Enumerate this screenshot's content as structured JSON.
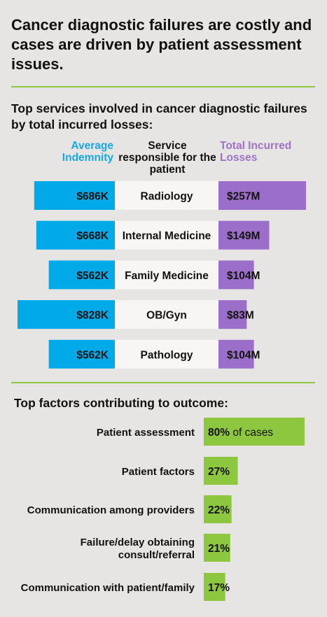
{
  "title": "Cancer diagnostic failures are costly and cases are driven by patient assessment issues.",
  "section1": {
    "title": "Top services involved in cancer diagnostic failures by total incurred losses:",
    "col_left": "Average Indemnity",
    "col_mid": "Service responsible for the patient",
    "col_right": "Total Incurred Losses"
  },
  "section2": {
    "title": "Top factors contributing to outcome:",
    "of_cases": "of cases"
  },
  "colors": {
    "indemnity": "#00a9e8",
    "losses": "#9b6fc9",
    "factor": "#8dc63f",
    "rule": "#8dc63f"
  },
  "chart_data": [
    {
      "type": "bar",
      "categories": [
        "Radiology",
        "Internal Medicine",
        "Family Medicine",
        "OB/Gyn",
        "Pathology"
      ],
      "series": [
        {
          "name": "Average Indemnity",
          "values": [
            686,
            668,
            562,
            828,
            562
          ],
          "labels": [
            "$686K",
            "$668K",
            "$562K",
            "$828K",
            "$562K"
          ]
        },
        {
          "name": "Total Incurred Losses",
          "values": [
            257,
            149,
            104,
            83,
            104
          ],
          "labels": [
            "$257M",
            "$149M",
            "$104M",
            "$83M",
            "$104M"
          ]
        }
      ]
    },
    {
      "type": "bar",
      "categories": [
        "Patient assessment",
        "Patient factors",
        "Communication among providers",
        "Failure/delay obtaining consult/referral",
        "Communication with patient/family"
      ],
      "values": [
        80,
        27,
        22,
        21,
        17
      ],
      "labels": [
        "80%",
        "27%",
        "22%",
        "21%",
        "17%"
      ],
      "unit": "% of cases"
    }
  ]
}
